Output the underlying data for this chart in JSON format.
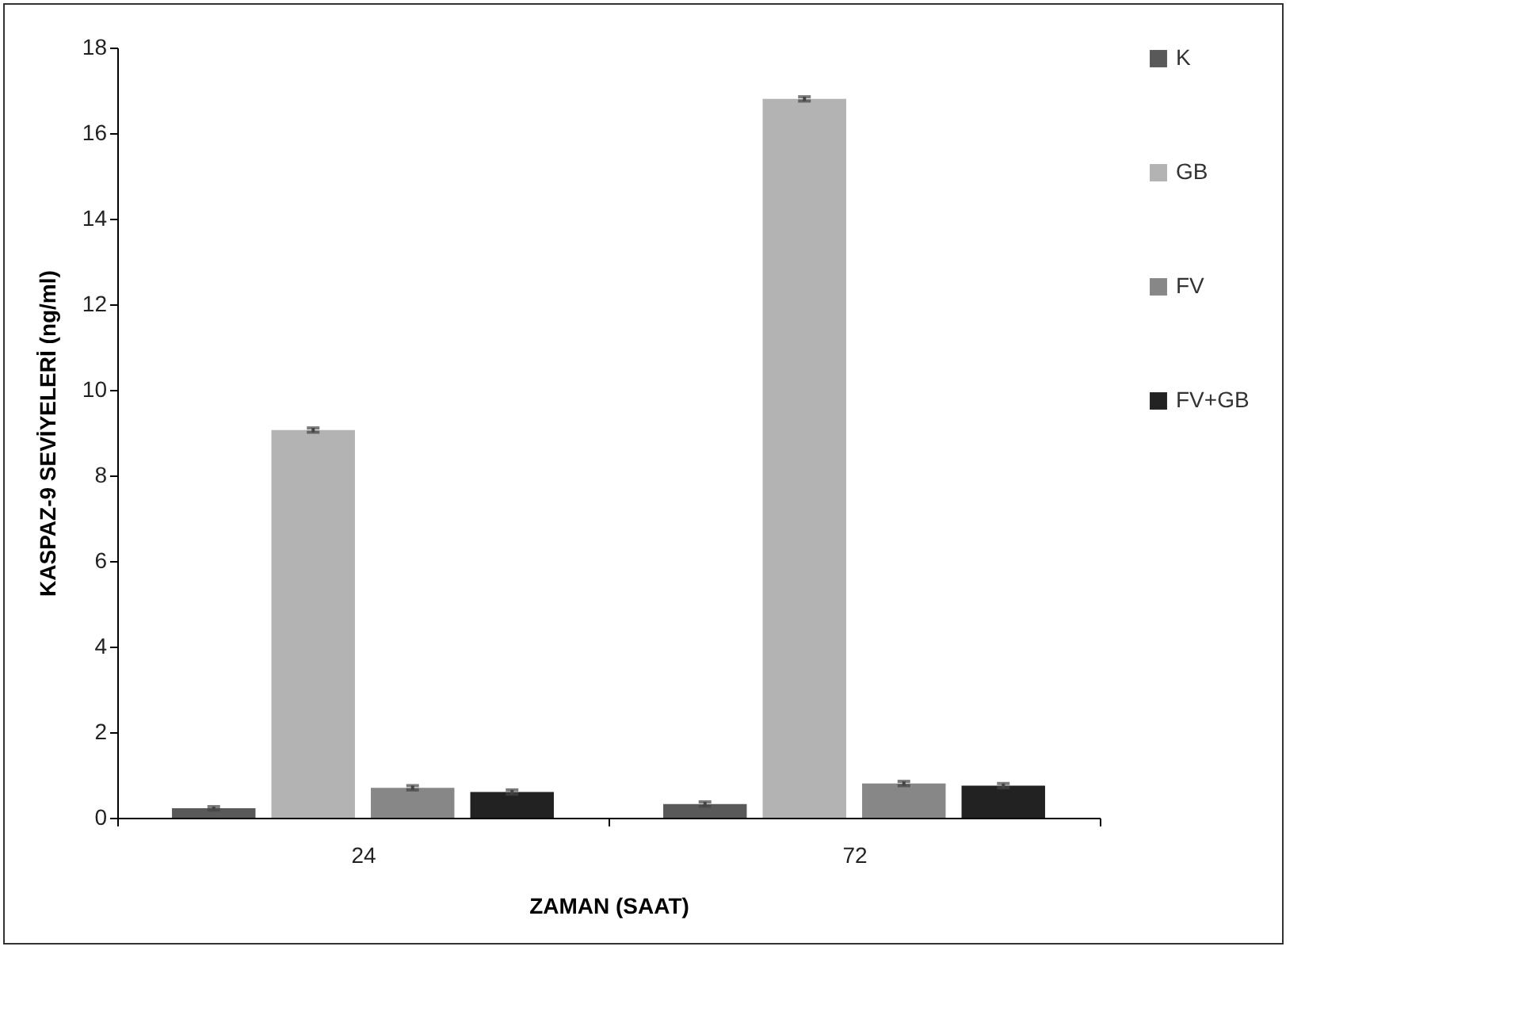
{
  "chart_data": {
    "type": "bar",
    "xlabel": "ZAMAN (SAAT)",
    "ylabel": "KASPAZ-9 SEVİYELERİ (ng/ml)",
    "categories": [
      "24",
      "72"
    ],
    "series": [
      {
        "name": "K",
        "color": "#595959",
        "values": [
          0.22,
          0.32
        ],
        "errors": [
          0.04,
          0.05
        ]
      },
      {
        "name": "GB",
        "color": "#b3b3b3",
        "values": [
          9.06,
          16.8
        ],
        "errors": [
          0.05,
          0.05
        ]
      },
      {
        "name": "FV",
        "color": "#878787",
        "values": [
          0.7,
          0.8
        ],
        "errors": [
          0.05,
          0.05
        ]
      },
      {
        "name": "FV+GB",
        "color": "#222222",
        "values": [
          0.6,
          0.75
        ],
        "errors": [
          0.05,
          0.05
        ]
      }
    ],
    "ylim": [
      0,
      18
    ],
    "yticks": [
      0,
      2,
      4,
      6,
      8,
      10,
      12,
      14,
      16,
      18
    ],
    "grid": false,
    "legend": "right"
  }
}
